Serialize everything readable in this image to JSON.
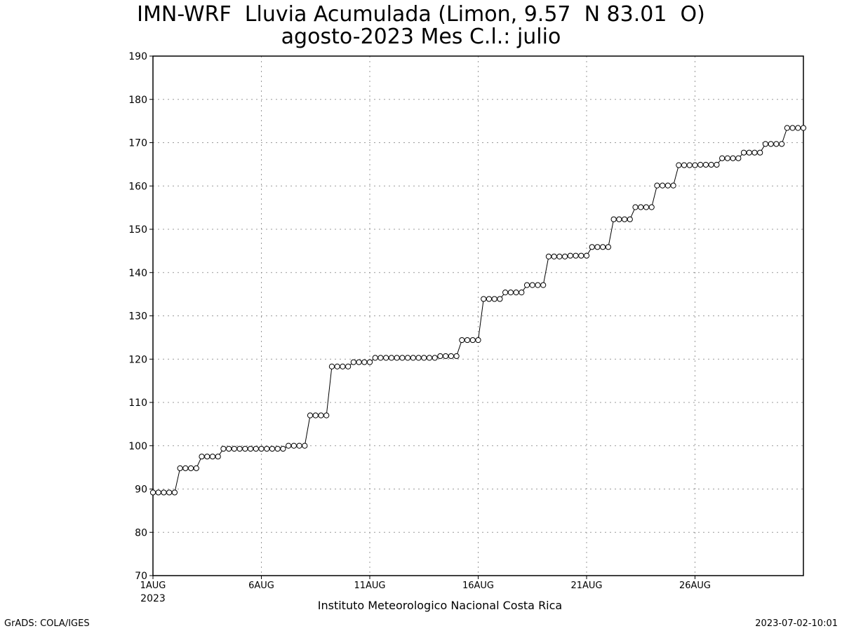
{
  "header": {
    "title_line1": "IMN-WRF  Lluvia Acumulada (Limon, 9.57  N 83.01  O)",
    "title_line2": "agosto-2023 Mes C.l.: julio"
  },
  "footer": {
    "left": "GrADS: COLA/IGES",
    "right": "2023-07-02-10:01",
    "credit": "Instituto Meteorologico Nacional Costa Rica"
  },
  "chart_data": {
    "type": "line",
    "title": "IMN-WRF  Lluvia Acumulada (Limon, 9.57  N 83.01  O)",
    "subtitle": "agosto-2023 Mes C.l.: julio",
    "xlabel": "",
    "ylabel": "",
    "x_start": "2023-08-01T00:00",
    "x_step_hours": 6,
    "x_tick_labels": [
      "1AUG",
      "6AUG",
      "11AUG",
      "16AUG",
      "21AUG",
      "26AUG"
    ],
    "x_tick_sublabel": "2023",
    "ylim": [
      70,
      190
    ],
    "y_ticks": [
      70,
      80,
      90,
      100,
      110,
      120,
      130,
      140,
      150,
      160,
      170,
      180,
      190
    ],
    "grid": true,
    "marker": "open-circle",
    "series": [
      {
        "values": [
          89.2,
          89.2,
          89.2,
          89.2,
          89.2,
          94.8,
          94.8,
          94.8,
          94.8,
          97.5,
          97.5,
          97.5,
          97.5,
          99.3,
          99.3,
          99.3,
          99.3,
          99.3,
          99.3,
          99.3,
          99.3,
          99.3,
          99.3,
          99.3,
          99.3,
          100.0,
          100.0,
          100.0,
          100.0,
          107.0,
          107.0,
          107.0,
          107.0,
          118.3,
          118.3,
          118.3,
          118.3,
          119.3,
          119.3,
          119.3,
          119.3,
          120.3,
          120.3,
          120.3,
          120.3,
          120.3,
          120.3,
          120.3,
          120.3,
          120.3,
          120.3,
          120.3,
          120.3,
          120.7,
          120.7,
          120.7,
          120.7,
          124.4,
          124.4,
          124.4,
          124.4,
          133.9,
          133.9,
          133.9,
          133.9,
          135.4,
          135.4,
          135.4,
          135.4,
          137.1,
          137.1,
          137.1,
          137.1,
          143.7,
          143.7,
          143.7,
          143.7,
          143.9,
          143.9,
          143.9,
          143.9,
          145.9,
          145.9,
          145.9,
          145.9,
          152.3,
          152.3,
          152.3,
          152.3,
          155.1,
          155.1,
          155.1,
          155.1,
          160.1,
          160.1,
          160.1,
          160.1,
          164.8,
          164.8,
          164.8,
          164.8,
          164.9,
          164.9,
          164.9,
          164.9,
          166.4,
          166.4,
          166.4,
          166.4,
          167.7,
          167.7,
          167.7,
          167.7,
          169.7,
          169.7,
          169.7,
          169.7,
          173.4,
          173.4,
          173.4,
          173.4
        ]
      }
    ]
  }
}
